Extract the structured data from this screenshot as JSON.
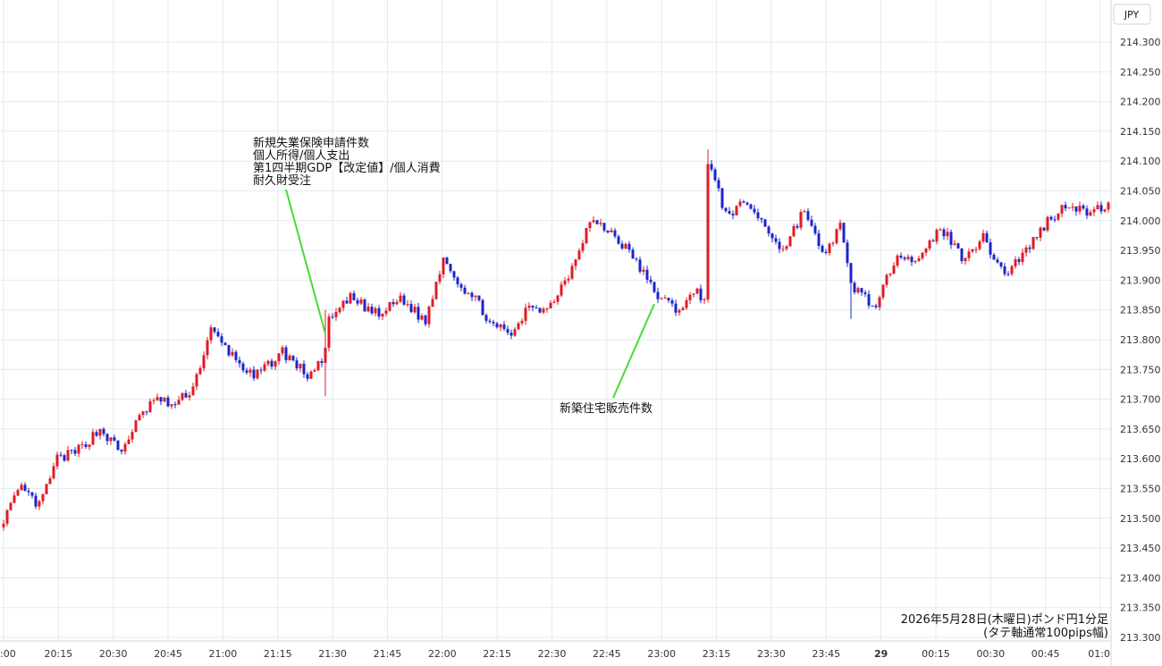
{
  "chart_data": {
    "type": "candlestick",
    "currency": "JPY",
    "interval_minutes": 1,
    "ylim": [
      213.3,
      214.3
    ],
    "y_ticks": [
      "213.300",
      "213.350",
      "213.400",
      "213.450",
      "213.500",
      "213.550",
      "213.600",
      "213.650",
      "213.700",
      "213.750",
      "213.800",
      "213.850",
      "213.900",
      "213.950",
      "214.000",
      "214.050",
      "214.100",
      "214.150",
      "214.200",
      "214.250",
      "214.300"
    ],
    "x_ticks": [
      ":00",
      "20:15",
      "20:30",
      "20:45",
      "21:00",
      "21:15",
      "21:30",
      "21:45",
      "22:00",
      "22:15",
      "22:30",
      "22:45",
      "23:00",
      "23:15",
      "23:30",
      "23:45",
      "29",
      "00:15",
      "00:30",
      "00:45",
      "01:0"
    ],
    "x_tick_bold": "29",
    "caption_lines": [
      "2026年5月28日(木曜日)ポンド円1分足",
      "(タテ軸通常100pips幅)"
    ],
    "annotations": [
      {
        "lines": [
          "新規失業保険申請件数",
          "個人所得/個人支出",
          "第1四半期GDP【改定値】/個人消費",
          "耐久財受注"
        ],
        "time_index": 90,
        "price": 213.81
      },
      {
        "lines": [
          "新築住宅販売件数"
        ],
        "time_index": 182,
        "price": 213.86
      }
    ],
    "colors": {
      "up": "#e01b24",
      "down": "#1c25c9",
      "grid": "#e3eaf2",
      "annotation_line": "#44dd33"
    },
    "anchors": [
      [
        0,
        213.5
      ],
      [
        5,
        213.55
      ],
      [
        10,
        213.52
      ],
      [
        15,
        213.6
      ],
      [
        20,
        213.61
      ],
      [
        27,
        213.65
      ],
      [
        33,
        213.61
      ],
      [
        36,
        213.65
      ],
      [
        42,
        213.7
      ],
      [
        48,
        213.69
      ],
      [
        53,
        213.72
      ],
      [
        58,
        213.815
      ],
      [
        63,
        213.78
      ],
      [
        70,
        213.735
      ],
      [
        78,
        213.78
      ],
      [
        85,
        213.74
      ],
      [
        89,
        213.76
      ],
      [
        91,
        213.83
      ],
      [
        97,
        213.87
      ],
      [
        105,
        213.84
      ],
      [
        111,
        213.87
      ],
      [
        118,
        213.83
      ],
      [
        123,
        213.94
      ],
      [
        128,
        213.89
      ],
      [
        133,
        213.86
      ],
      [
        137,
        213.82
      ],
      [
        143,
        213.81
      ],
      [
        147,
        213.86
      ],
      [
        152,
        213.85
      ],
      [
        158,
        213.91
      ],
      [
        164,
        214.0
      ],
      [
        170,
        213.98
      ],
      [
        176,
        213.94
      ],
      [
        182,
        213.88
      ],
      [
        188,
        213.85
      ],
      [
        194,
        213.88
      ],
      [
        196,
        213.87
      ],
      [
        197,
        214.1
      ],
      [
        202,
        214.01
      ],
      [
        208,
        214.03
      ],
      [
        213,
        213.99
      ],
      [
        218,
        213.95
      ],
      [
        224,
        214.02
      ],
      [
        229,
        213.94
      ],
      [
        234,
        213.99
      ],
      [
        237,
        213.89
      ],
      [
        240,
        213.88
      ],
      [
        244,
        213.85
      ],
      [
        250,
        213.95
      ],
      [
        256,
        213.93
      ],
      [
        262,
        213.99
      ],
      [
        268,
        213.94
      ],
      [
        274,
        213.97
      ],
      [
        280,
        213.91
      ],
      [
        286,
        213.95
      ],
      [
        292,
        214.0
      ],
      [
        298,
        214.03
      ],
      [
        304,
        214.01
      ],
      [
        309,
        214.03
      ]
    ]
  }
}
